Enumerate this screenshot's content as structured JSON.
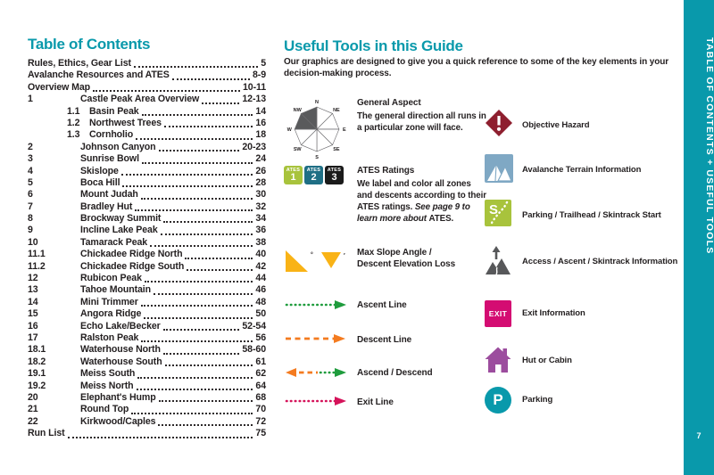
{
  "toc": {
    "title": "Table of Contents",
    "entries": [
      {
        "num": "",
        "name": "Rules, Ethics, Gear List",
        "page": "5",
        "type": "header"
      },
      {
        "num": "",
        "name": "Avalanche Resources and ATES",
        "page": "8-9",
        "type": "header"
      },
      {
        "num": "",
        "name": "Overview Map",
        "page": "10-11",
        "type": "header"
      },
      {
        "num": "1",
        "name": "Castle Peak Area Overview",
        "page": "12-13",
        "type": "main"
      },
      {
        "num": "1.1",
        "name": "Basin Peak",
        "page": "14",
        "type": "sub"
      },
      {
        "num": "1.2",
        "name": "Northwest Trees",
        "page": "16",
        "type": "sub"
      },
      {
        "num": "1.3",
        "name": "Cornholio",
        "page": "18",
        "type": "sub"
      },
      {
        "num": "2",
        "name": "Johnson Canyon",
        "page": "20-23",
        "type": "main"
      },
      {
        "num": "3",
        "name": "Sunrise Bowl",
        "page": "24",
        "type": "main"
      },
      {
        "num": "4",
        "name": "Skislope",
        "page": "26",
        "type": "main"
      },
      {
        "num": "5",
        "name": "Boca Hill",
        "page": "28",
        "type": "main"
      },
      {
        "num": "6",
        "name": "Mount Judah",
        "page": "30",
        "type": "main"
      },
      {
        "num": "7",
        "name": "Bradley Hut",
        "page": "32",
        "type": "main"
      },
      {
        "num": "8",
        "name": "Brockway Summit",
        "page": "34",
        "type": "main"
      },
      {
        "num": "9",
        "name": "Incline Lake Peak",
        "page": "36",
        "type": "main"
      },
      {
        "num": "10",
        "name": "Tamarack Peak",
        "page": "38",
        "type": "main"
      },
      {
        "num": "11.1",
        "name": "Chickadee Ridge North",
        "page": "40",
        "type": "main"
      },
      {
        "num": "11.2",
        "name": "Chickadee Ridge South",
        "page": "42",
        "type": "main"
      },
      {
        "num": "12",
        "name": "Rubicon Peak",
        "page": "44",
        "type": "main"
      },
      {
        "num": "13",
        "name": "Tahoe Mountain",
        "page": "46",
        "type": "main"
      },
      {
        "num": "14",
        "name": "Mini Trimmer",
        "page": "48",
        "type": "main"
      },
      {
        "num": "15",
        "name": "Angora Ridge",
        "page": "50",
        "type": "main"
      },
      {
        "num": "16",
        "name": "Echo Lake/Becker",
        "page": "52-54",
        "type": "main"
      },
      {
        "num": "17",
        "name": "Ralston Peak",
        "page": "56",
        "type": "main"
      },
      {
        "num": "18.1",
        "name": "Waterhouse North",
        "page": "58-60",
        "type": "main"
      },
      {
        "num": "18.2",
        "name": "Waterhouse South",
        "page": "61",
        "type": "main"
      },
      {
        "num": "19.1",
        "name": "Meiss South",
        "page": "62",
        "type": "main"
      },
      {
        "num": "19.2",
        "name": "Meiss North",
        "page": "64",
        "type": "main"
      },
      {
        "num": "20",
        "name": "Elephant's Hump",
        "page": "68",
        "type": "main"
      },
      {
        "num": "21",
        "name": "Round Top",
        "page": "70",
        "type": "main"
      },
      {
        "num": "22",
        "name": "Kirkwood/Caples",
        "page": "72",
        "type": "main"
      },
      {
        "num": "",
        "name": "Run List",
        "page": "75",
        "type": "header"
      }
    ]
  },
  "tools": {
    "title": "Useful Tools in this Guide",
    "intro": "Our graphics are designed to give you a quick reference to some of the key elements in your decision-making process.",
    "compass_labels": [
      "N",
      "NE",
      "E",
      "SE",
      "S",
      "SW",
      "W",
      "NW"
    ],
    "ates_boxes": [
      {
        "word": "ATES",
        "num": "1",
        "color": "#A8C33C"
      },
      {
        "word": "ATES",
        "num": "2",
        "color": "#1F6F85"
      },
      {
        "word": "ATES",
        "num": "3",
        "color": "#1A1A1A"
      }
    ],
    "slope_units": {
      "degrees": "°",
      "feet": "′"
    },
    "left_items": [
      {
        "icon": "compass-rose",
        "label": "General Aspect",
        "desc_parts": [
          {
            "t": "The general direction all runs in a particular zone will face.",
            "i": false
          }
        ]
      },
      {
        "icon": "ates-ratings",
        "label": "ATES Ratings",
        "desc_parts": [
          {
            "t": "We label and color all zones and descents according to their ATES ratings. ",
            "i": false
          },
          {
            "t": "See page 9 to learn more about ",
            "i": true
          },
          {
            "t": "ATES.",
            "i": false
          }
        ]
      },
      {
        "icon": "slope-triangles",
        "label": "Max Slope Angle / Descent Elevation Loss"
      },
      {
        "icon": "ascent-line",
        "label": "Ascent Line"
      },
      {
        "icon": "descent-line",
        "label": "Descent Line"
      },
      {
        "icon": "ascend-descend-line",
        "label": "Ascend / Descend"
      },
      {
        "icon": "exit-line",
        "label": "Exit Line"
      }
    ],
    "right_items": [
      {
        "icon": "objective-hazard",
        "label": "Objective Hazard"
      },
      {
        "icon": "avalanche-terrain",
        "label": "Avalanche Terrain Information"
      },
      {
        "icon": "trailhead-start",
        "label": "Parking / Trailhead / Skintrack Start"
      },
      {
        "icon": "access-info",
        "label": "Access / Ascent / Skintrack Information"
      },
      {
        "icon": "exit-info",
        "label": "Exit Information",
        "icon_text": "EXIT"
      },
      {
        "icon": "hut-cabin",
        "label": "Hut or Cabin"
      },
      {
        "icon": "parking",
        "label": "Parking",
        "icon_text": "P"
      }
    ]
  },
  "sidebar": {
    "text": "TABLE OF CONTENTS + USEFUL TOOLS",
    "page_number": "7"
  },
  "colors": {
    "teal": "#0999AB",
    "text": "#231F20",
    "compass_dark": "#595A5C",
    "compass_line": "#6E6D70",
    "gold": "#F9B316",
    "ascent_green": "#1F9C3D",
    "descent_orange": "#F47B20",
    "exit_line_red": "#D5135A",
    "hazard_maroon": "#8E1F2F",
    "avalanche_blue": "#7FA8C4",
    "trailhead_green": "#A8C33C",
    "access_gray": "#57585A",
    "exit_pink": "#D40C72",
    "hut_purple": "#9C4D9E"
  }
}
